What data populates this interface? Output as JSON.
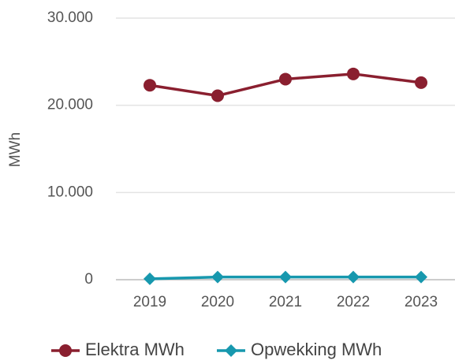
{
  "chart_data": {
    "type": "line",
    "y_label": "MWh",
    "categories": [
      "2019",
      "2020",
      "2021",
      "2022",
      "2023"
    ],
    "series": [
      {
        "name": "Elektra MWh",
        "color": "#8a1f2f",
        "marker": "circle",
        "values": [
          22300,
          21100,
          23000,
          23600,
          22600
        ]
      },
      {
        "name": "Opwekking MWh",
        "color": "#1798ae",
        "marker": "diamond",
        "values": [
          100,
          300,
          300,
          300,
          300
        ]
      }
    ],
    "ylim": [
      0,
      30000
    ],
    "yticks": [
      0,
      {
        "value": 10000,
        "label": "10.000"
      },
      {
        "value": 20000,
        "label": "20.000"
      },
      {
        "value": 30000,
        "label": "30.000"
      }
    ],
    "grid": true,
    "legend": "bottom"
  }
}
